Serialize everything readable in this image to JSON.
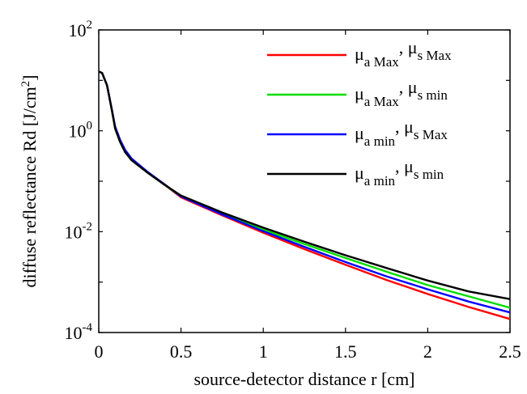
{
  "chart_data": {
    "type": "line",
    "xlabel": "source-detector distance r [cm]",
    "ylabel": "diffuse reflectance Rd [J/cm",
    "ylabel_sup": "2",
    "ylabel_end": "]",
    "xlim": [
      0,
      2.5
    ],
    "ylim": [
      0.0001,
      100
    ],
    "yscale": "log",
    "x_ticks": [
      {
        "value": 0,
        "label": "0"
      },
      {
        "value": 0.5,
        "label": "0.5"
      },
      {
        "value": 1,
        "label": "1"
      },
      {
        "value": 1.5,
        "label": "1.5"
      },
      {
        "value": 2,
        "label": "2"
      },
      {
        "value": 2.5,
        "label": "2.5"
      }
    ],
    "y_ticks": [
      {
        "value": 100,
        "base": "10",
        "exp": "2"
      },
      {
        "value": 1,
        "base": "10",
        "exp": "0"
      },
      {
        "value": 0.01,
        "base": "10",
        "exp": "-2"
      },
      {
        "value": 0.0001,
        "base": "10",
        "exp": "-4"
      }
    ],
    "grid": false,
    "legend_position": "top-right",
    "x": [
      0,
      0.02,
      0.05,
      0.08,
      0.1,
      0.13,
      0.16,
      0.2,
      0.3,
      0.4,
      0.5,
      0.75,
      1.0,
      1.25,
      1.5,
      1.75,
      2.0,
      2.25,
      2.5
    ],
    "series": [
      {
        "name": "μa Max, μs Max",
        "mu_a": "μ",
        "sub_a": "a Max",
        "sep": ", ",
        "mu_s": "μ",
        "sub_s": "s Max",
        "color": "#ff0000",
        "values": [
          15,
          14,
          8,
          2.5,
          1.1,
          0.6,
          0.38,
          0.26,
          0.145,
          0.085,
          0.048,
          0.021,
          0.0095,
          0.0045,
          0.0022,
          0.0011,
          0.00058,
          0.00032,
          0.000185
        ]
      },
      {
        "name": "μa Max, μs min",
        "mu_a": "μ",
        "sub_a": "a Max",
        "sep": ", ",
        "mu_s": "μ",
        "sub_s": "s min",
        "color": "#00dd00",
        "values": [
          15,
          14,
          8,
          2.5,
          1.1,
          0.6,
          0.38,
          0.26,
          0.145,
          0.085,
          0.05,
          0.023,
          0.011,
          0.0057,
          0.003,
          0.0016,
          0.00087,
          0.00052,
          0.00031
        ]
      },
      {
        "name": "μa min, μs Max",
        "mu_a": "μ",
        "sub_a": "a min",
        "sep": ", ",
        "mu_s": "μ",
        "sub_s": "s Max",
        "color": "#0000ff",
        "values": [
          15,
          14,
          8,
          2.6,
          1.2,
          0.66,
          0.42,
          0.28,
          0.15,
          0.087,
          0.05,
          0.022,
          0.0102,
          0.005,
          0.0025,
          0.0013,
          0.00072,
          0.00041,
          0.00025
        ]
      },
      {
        "name": "μa min, μs min",
        "mu_a": "μ",
        "sub_a": "a min",
        "sep": ", ",
        "mu_s": "μ",
        "sub_s": "s min",
        "color": "#000000",
        "values": [
          15,
          14,
          8,
          2.5,
          1.1,
          0.6,
          0.38,
          0.26,
          0.145,
          0.085,
          0.052,
          0.024,
          0.012,
          0.0063,
          0.0034,
          0.0019,
          0.00107,
          0.00065,
          0.00046
        ]
      }
    ]
  }
}
